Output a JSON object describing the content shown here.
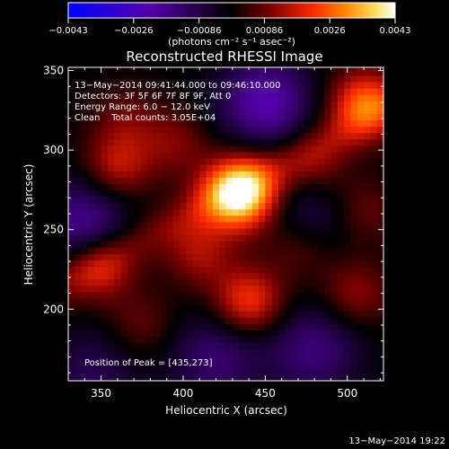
{
  "chart_data": {
    "type": "heatmap",
    "title": "Reconstructed RHESSI Image",
    "xlabel": "Heliocentric X (arcsec)",
    "ylabel": "Heliocentric Y (arcsec)",
    "xlim": [
      330,
      522
    ],
    "ylim": [
      155,
      352
    ],
    "x_ticks": [
      350,
      400,
      450,
      500
    ],
    "y_ticks": [
      200,
      250,
      300,
      350
    ],
    "colorbar": {
      "ticks": [
        "−0.0043",
        "−0.0026",
        "−0.00086",
        "0.00086",
        "0.0026",
        "0.0043"
      ],
      "range": [
        -0.0043,
        0.0043
      ],
      "label": "(photons cm⁻² s⁻¹ asec⁻²)",
      "colors": [
        "#0000ff",
        "#5500aa",
        "#000000",
        "#7a0000",
        "#ff2a00",
        "#ff8a00",
        "#ffe060",
        "#ffffff"
      ]
    },
    "annotations": [
      "13−May−2014 09:41:44.000 to 09:46:10.000",
      "Detectors: 3F 5F 6F 7F 8F 9F, Att 0",
      "Energy Range: 6.0 − 12.0 keV",
      "Clean    Total counts: 3.05E+04"
    ],
    "peak_label": "Position of Peak = [435,273]",
    "peak": [
      435,
      273
    ],
    "hot_spots": [
      {
        "x": 435,
        "y": 273,
        "value": 0.0043
      },
      {
        "x": 510,
        "y": 330,
        "value": 0.0024
      },
      {
        "x": 440,
        "y": 205,
        "value": 0.0022
      },
      {
        "x": 360,
        "y": 290,
        "value": 0.0016
      },
      {
        "x": 350,
        "y": 225,
        "value": 0.0015
      },
      {
        "x": 410,
        "y": 235,
        "value": 0.0013
      },
      {
        "x": 505,
        "y": 210,
        "value": 0.0012
      },
      {
        "x": 395,
        "y": 305,
        "value": 0.001
      },
      {
        "x": 480,
        "y": 290,
        "value": 0.001
      },
      {
        "x": 470,
        "y": 240,
        "value": 0.001
      },
      {
        "x": 375,
        "y": 190,
        "value": 0.0008
      },
      {
        "x": 510,
        "y": 262,
        "value": 0.0009
      },
      {
        "x": 365,
        "y": 320,
        "value": 0.0008
      }
    ],
    "cold_spots": [
      {
        "x": 450,
        "y": 330,
        "value": -0.0022
      },
      {
        "x": 340,
        "y": 255,
        "value": -0.0018
      },
      {
        "x": 480,
        "y": 175,
        "value": -0.0015
      },
      {
        "x": 420,
        "y": 170,
        "value": -0.0014
      },
      {
        "x": 475,
        "y": 260,
        "value": -0.0012
      },
      {
        "x": 345,
        "y": 160,
        "value": -0.001
      }
    ]
  },
  "footer": {
    "timestamp": "13−May−2014 19:22"
  }
}
